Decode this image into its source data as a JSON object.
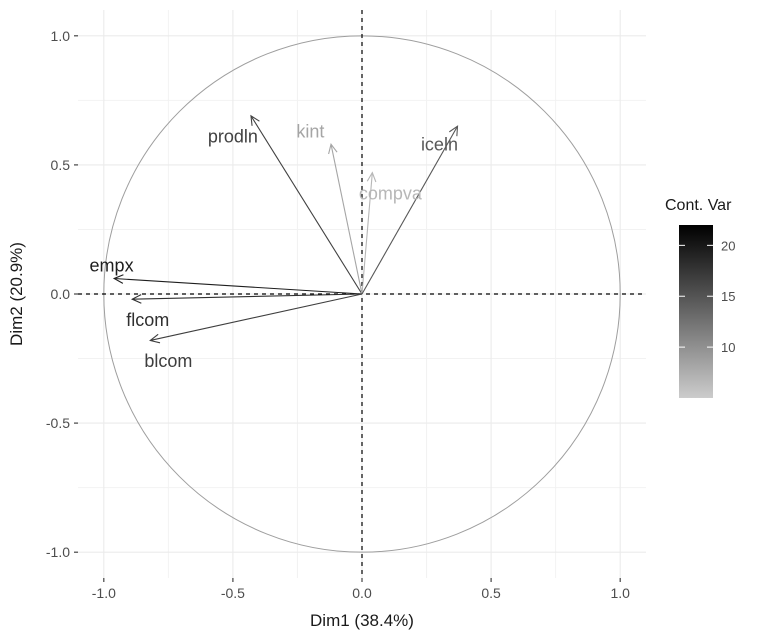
{
  "chart_data": {
    "type": "pca-variable-correlation",
    "xlabel": "Dim1 (38.4%)",
    "ylabel": "Dim2 (20.9%)",
    "xlim": [
      -1.1,
      1.1
    ],
    "ylim": [
      -1.1,
      1.1
    ],
    "x_ticks": [
      {
        "value": -1.0,
        "label": "-1.0"
      },
      {
        "value": -0.5,
        "label": "-0.5"
      },
      {
        "value": 0.0,
        "label": "0.0"
      },
      {
        "value": 0.5,
        "label": "0.5"
      },
      {
        "value": 1.0,
        "label": "1.0"
      }
    ],
    "y_ticks": [
      {
        "value": 1.0,
        "label": "1.0"
      },
      {
        "value": 0.5,
        "label": "0.5"
      },
      {
        "value": 0.0,
        "label": "0.0"
      },
      {
        "value": -0.5,
        "label": "-0.5"
      },
      {
        "value": -1.0,
        "label": "-1.0"
      }
    ],
    "grid": true,
    "unit_circle": true,
    "reference_lines": "dashed at x=0 and y=0",
    "variables": [
      {
        "name": "prodln",
        "x": -0.43,
        "y": 0.69,
        "label_x": -0.5,
        "label_y": 0.61,
        "contrib": 16.5,
        "color": "#414141"
      },
      {
        "name": "kint",
        "x": -0.12,
        "y": 0.58,
        "label_x": -0.2,
        "label_y": 0.63,
        "contrib": 5.6,
        "color": "#a5a5a5"
      },
      {
        "name": "compva",
        "x": 0.04,
        "y": 0.47,
        "label_x": 0.11,
        "label_y": 0.39,
        "contrib": 4.2,
        "color": "#b7b7b7"
      },
      {
        "name": "iceln",
        "x": 0.37,
        "y": 0.65,
        "label_x": 0.3,
        "label_y": 0.58,
        "contrib": 13.0,
        "color": "#585858"
      },
      {
        "name": "empx",
        "x": -0.96,
        "y": 0.06,
        "label_x": -0.97,
        "label_y": 0.11,
        "contrib": 21.5,
        "color": "#1e1e1e"
      },
      {
        "name": "flcom",
        "x": -0.89,
        "y": -0.02,
        "label_x": -0.83,
        "label_y": -0.1,
        "contrib": 18.6,
        "color": "#303030"
      },
      {
        "name": "blcom",
        "x": -0.82,
        "y": -0.18,
        "label_x": -0.75,
        "label_y": -0.26,
        "contrib": 16.9,
        "color": "#3e3e3e"
      }
    ],
    "legend": {
      "title": "Cont. Var",
      "placement": "right",
      "range": [
        5.0,
        22.0
      ],
      "ticks": [
        {
          "value": 20,
          "label": "20"
        },
        {
          "value": 15,
          "label": "15"
        },
        {
          "value": 10,
          "label": "10"
        }
      ],
      "color_low": "#cccccc",
      "color_high": "#000000"
    }
  }
}
